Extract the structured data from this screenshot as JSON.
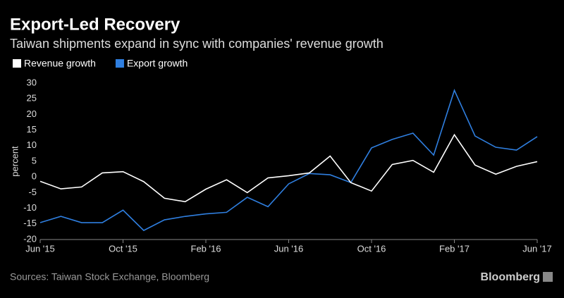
{
  "chart_data": {
    "type": "line",
    "title": "Export-Led Recovery",
    "subtitle": "Taiwan shipments expand in sync with companies' revenue growth",
    "y_label": "percent",
    "source": "Sources: Taiwan Stock Exchange, Bloomberg",
    "brand": "Bloomberg",
    "categories": [
      "Jun '15",
      null,
      null,
      null,
      "Oct '15",
      null,
      null,
      null,
      "Feb '16",
      null,
      null,
      null,
      "Jun '16",
      null,
      null,
      null,
      "Oct '16",
      null,
      null,
      null,
      "Feb '17",
      null,
      null,
      null,
      "Jun '17"
    ],
    "series": [
      {
        "name": "Revenue growth",
        "color": "#ffffff",
        "values": [
          -1.4,
          -3.8,
          -3.2,
          1.3,
          1.7,
          -1.5,
          -6.8,
          -7.9,
          -3.9,
          -0.9,
          -5,
          -0.3,
          0.4,
          1.3,
          6.7,
          -1.8,
          -4.5,
          4,
          5.3,
          1.5,
          13.5,
          3.8,
          0.9,
          3.4,
          4.9
        ]
      },
      {
        "name": "Export growth",
        "color": "#2f7fe0",
        "values": [
          -14.6,
          -12.6,
          -14.6,
          -14.6,
          -10.6,
          -17.1,
          -13.7,
          -12.6,
          -11.8,
          -11.3,
          -6.5,
          -9.5,
          -2.2,
          1.1,
          0.7,
          -1.8,
          9.3,
          12,
          14,
          7,
          27.7,
          13.1,
          9.5,
          8.6,
          12.9
        ]
      }
    ],
    "ylim": [
      -20,
      30
    ],
    "yticks": [
      30,
      25,
      20,
      15,
      10,
      5,
      0,
      -5,
      -10,
      -15,
      -20
    ],
    "grid": false
  }
}
